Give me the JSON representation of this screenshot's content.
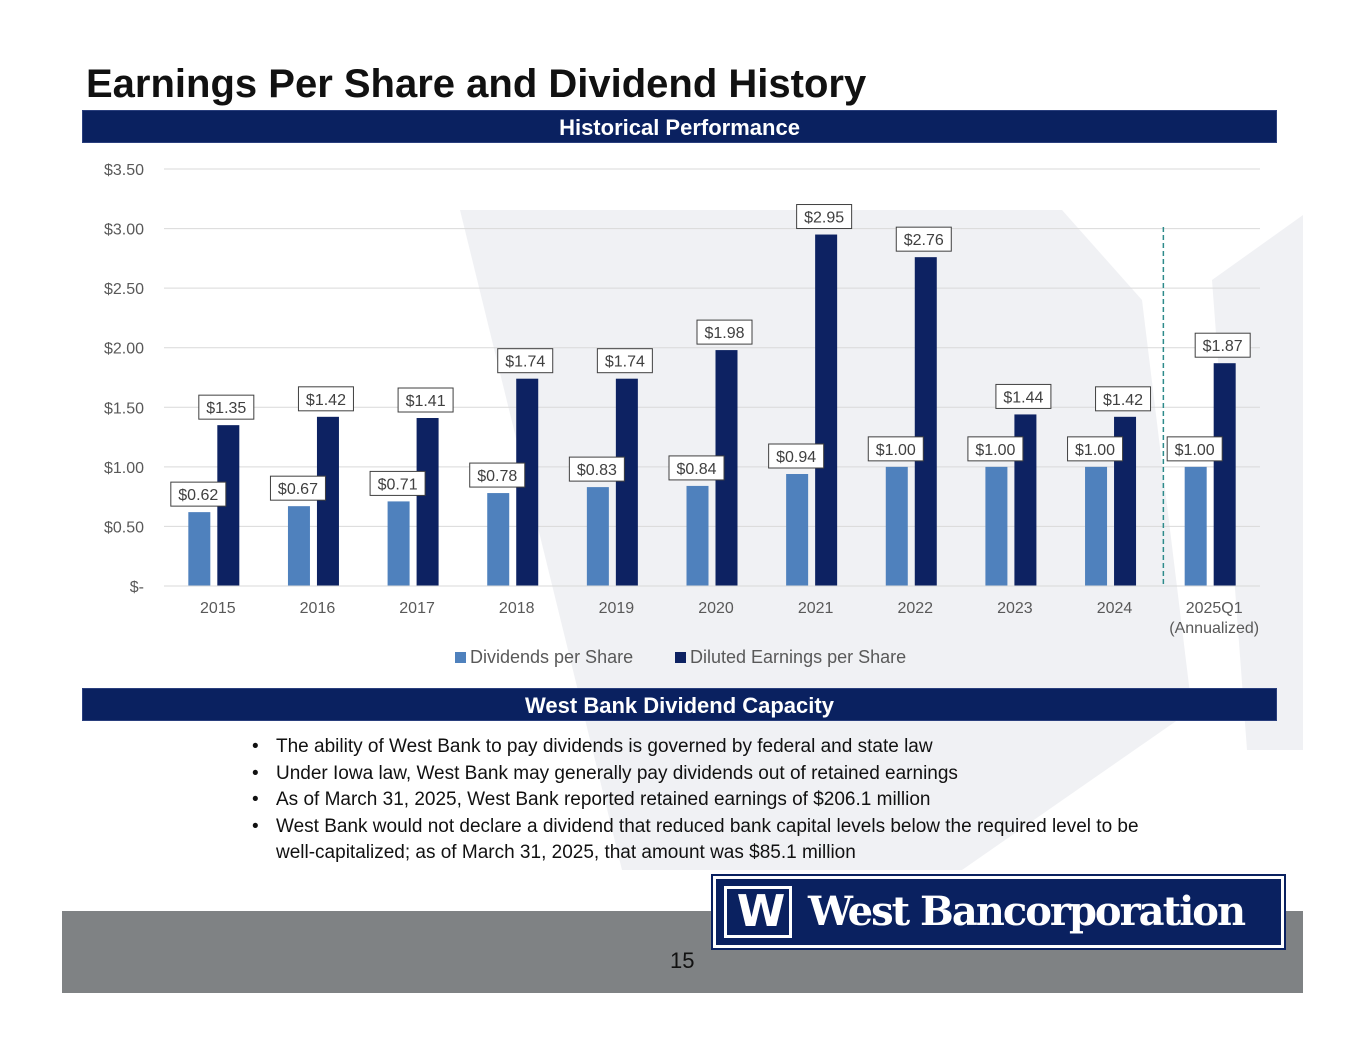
{
  "slide": {
    "title": "Earnings Per Share and Dividend History",
    "section1_header": "Historical Performance",
    "section2_header": "West Bank Dividend Capacity",
    "bullets": [
      "The ability of West Bank to pay dividends is governed by federal and state law",
      "Under Iowa law, West Bank may generally pay dividends out of retained earnings",
      "As of March 31, 2025, West Bank reported retained earnings of $206.1 million",
      "West Bank would not declare a dividend that reduced bank capital levels below the required level to be well-capitalized; as of March 31, 2025, that amount was $85.1 million"
    ],
    "bullet_symbol": "•",
    "page_number": "15",
    "logo": {
      "mark": "W",
      "text": "West Bancorporation"
    }
  },
  "colors": {
    "navy": "#0a2160",
    "dividend_bar": "#4f81bd",
    "eps_bar": "#0d2262",
    "footer_gray": "#7f8284",
    "separator": "#2e8b8b"
  },
  "chart_data": {
    "type": "bar",
    "title": "Historical Performance",
    "categories": [
      "2015",
      "2016",
      "2017",
      "2018",
      "2019",
      "2020",
      "2021",
      "2022",
      "2023",
      "2024",
      "2025Q1\n(Annualized)"
    ],
    "series": [
      {
        "name": "Dividends per Share",
        "values": [
          0.62,
          0.67,
          0.71,
          0.78,
          0.83,
          0.84,
          0.94,
          1.0,
          1.0,
          1.0,
          1.0
        ],
        "labels": [
          "$0.62",
          "$0.67",
          "$0.71",
          "$0.78",
          "$0.83",
          "$0.84",
          "$0.94",
          "$1.00",
          "$1.00",
          "$1.00",
          "$1.00"
        ]
      },
      {
        "name": "Diluted Earnings per Share",
        "values": [
          1.35,
          1.42,
          1.41,
          1.74,
          1.74,
          1.98,
          2.95,
          2.76,
          1.44,
          1.42,
          1.87
        ],
        "labels": [
          "$1.35",
          "$1.42",
          "$1.41",
          "$1.74",
          "$1.74",
          "$1.98",
          "$2.95",
          "$2.76",
          "$1.44",
          "$1.42",
          "$1.87"
        ]
      }
    ],
    "ylim": [
      0,
      3.5
    ],
    "yticks": [
      0,
      0.5,
      1.0,
      1.5,
      2.0,
      2.5,
      3.0,
      3.5
    ],
    "ytick_labels": [
      "$-",
      "$0.50",
      "$1.00",
      "$1.50",
      "$2.00",
      "$2.50",
      "$3.00",
      "$3.50"
    ],
    "grid": true,
    "legend_position": "bottom-center",
    "annotations": [
      "dashed vertical separator between 2024 and 2025Q1 (Annualized)"
    ],
    "xlabel": "",
    "ylabel": ""
  }
}
